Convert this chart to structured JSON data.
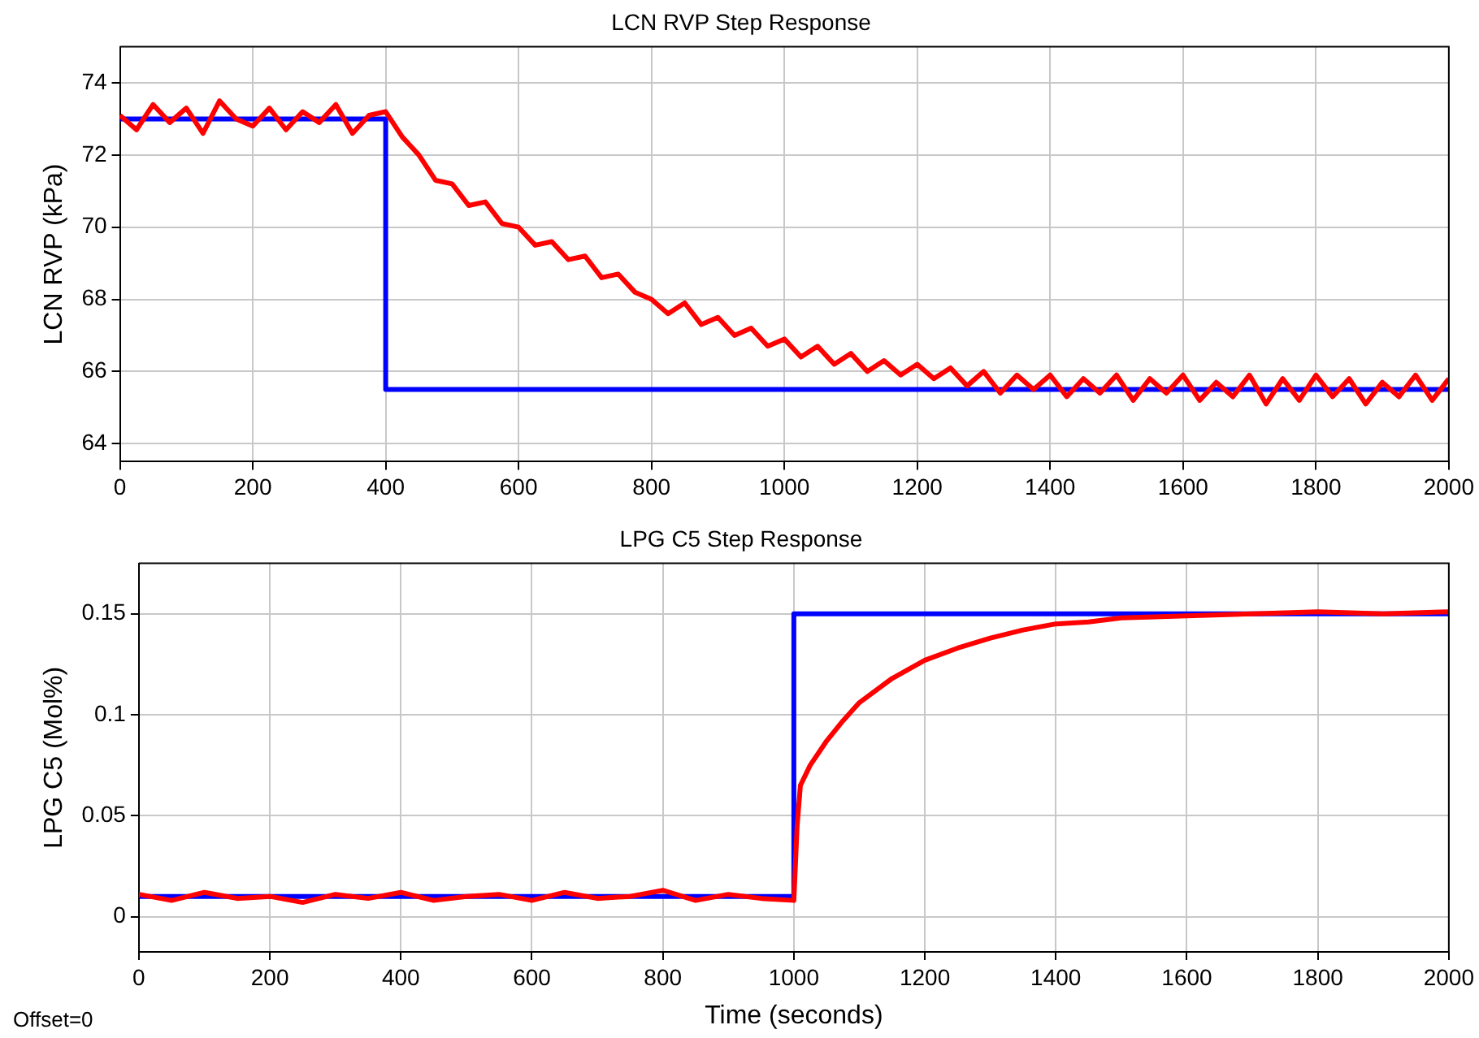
{
  "chart_data": [
    {
      "type": "line",
      "title": "LCN RVP Step Response",
      "ylabel": "LCN RVP (kPa)",
      "xlim": [
        0,
        2000
      ],
      "xticks": [
        0,
        200,
        400,
        600,
        800,
        1000,
        1200,
        1400,
        1600,
        1800,
        2000
      ],
      "ylim": [
        63.5,
        75
      ],
      "yticks": [
        64,
        66,
        68,
        70,
        72,
        74
      ],
      "grid": true,
      "legend": false,
      "marker": "none",
      "line_style": "solid",
      "series": [
        {
          "color": "#ff0000",
          "x": [
            0,
            25,
            50,
            75,
            100,
            125,
            150,
            175,
            200,
            225,
            250,
            275,
            300,
            325,
            350,
            375,
            400,
            425,
            450,
            475,
            500,
            525,
            550,
            575,
            600,
            625,
            650,
            675,
            700,
            725,
            750,
            775,
            800,
            825,
            850,
            875,
            900,
            925,
            950,
            975,
            1000,
            1025,
            1050,
            1075,
            1100,
            1125,
            1150,
            1175,
            1200,
            1225,
            1250,
            1275,
            1300,
            1325,
            1350,
            1375,
            1400,
            1425,
            1450,
            1475,
            1500,
            1525,
            1550,
            1575,
            1600,
            1625,
            1650,
            1675,
            1700,
            1725,
            1750,
            1775,
            1800,
            1825,
            1850,
            1875,
            1900,
            1925,
            1950,
            1975,
            2000
          ],
          "values": [
            73.1,
            72.7,
            73.4,
            72.9,
            73.3,
            72.6,
            73.5,
            73.0,
            72.8,
            73.3,
            72.7,
            73.2,
            72.9,
            73.4,
            72.6,
            73.1,
            73.2,
            72.5,
            72.0,
            71.3,
            71.2,
            70.6,
            70.7,
            70.1,
            70.0,
            69.5,
            69.6,
            69.1,
            69.2,
            68.6,
            68.7,
            68.2,
            68.0,
            67.6,
            67.9,
            67.3,
            67.5,
            67.0,
            67.2,
            66.7,
            66.9,
            66.4,
            66.7,
            66.2,
            66.5,
            66.0,
            66.3,
            65.9,
            66.2,
            65.8,
            66.1,
            65.6,
            66.0,
            65.4,
            65.9,
            65.5,
            65.9,
            65.3,
            65.8,
            65.4,
            65.9,
            65.2,
            65.8,
            65.4,
            65.9,
            65.2,
            65.7,
            65.3,
            65.9,
            65.1,
            65.8,
            65.2,
            65.9,
            65.3,
            65.8,
            65.1,
            65.7,
            65.3,
            65.9,
            65.2,
            65.8
          ]
        },
        {
          "color": "#0000ff",
          "x": [
            0,
            400,
            400,
            2000
          ],
          "values": [
            73,
            73,
            65.5,
            65.5
          ]
        }
      ]
    },
    {
      "type": "line",
      "title": "LPG C5 Step Response",
      "xlabel": "Time (seconds)",
      "ylabel": "LPG C5 (Mol%)",
      "xlim": [
        0,
        2000
      ],
      "xticks": [
        0,
        200,
        400,
        600,
        800,
        1000,
        1200,
        1400,
        1600,
        1800,
        2000
      ],
      "ylim": [
        -0.0175,
        0.175
      ],
      "yticks": [
        0,
        0.05,
        0.1,
        0.15
      ],
      "grid": true,
      "legend": false,
      "marker": "none",
      "line_style": "solid",
      "annotations": [
        "Offset=0"
      ],
      "series": [
        {
          "color": "#ff0000",
          "x": [
            0,
            50,
            100,
            150,
            200,
            250,
            300,
            350,
            400,
            450,
            500,
            550,
            600,
            650,
            700,
            750,
            800,
            850,
            900,
            950,
            1000,
            1005,
            1010,
            1025,
            1050,
            1075,
            1100,
            1150,
            1200,
            1250,
            1300,
            1350,
            1400,
            1450,
            1500,
            1600,
            1700,
            1800,
            1900,
            2000
          ],
          "values": [
            0.011,
            0.008,
            0.012,
            0.009,
            0.01,
            0.007,
            0.011,
            0.009,
            0.012,
            0.008,
            0.01,
            0.011,
            0.008,
            0.012,
            0.009,
            0.01,
            0.013,
            0.008,
            0.011,
            0.009,
            0.008,
            0.045,
            0.065,
            0.075,
            0.087,
            0.097,
            0.106,
            0.118,
            0.127,
            0.133,
            0.138,
            0.142,
            0.145,
            0.146,
            0.148,
            0.149,
            0.15,
            0.151,
            0.15,
            0.151
          ]
        },
        {
          "color": "#0000ff",
          "x": [
            0,
            1000,
            1000,
            2000
          ],
          "values": [
            0.01,
            0.01,
            0.15,
            0.15
          ]
        }
      ]
    }
  ]
}
